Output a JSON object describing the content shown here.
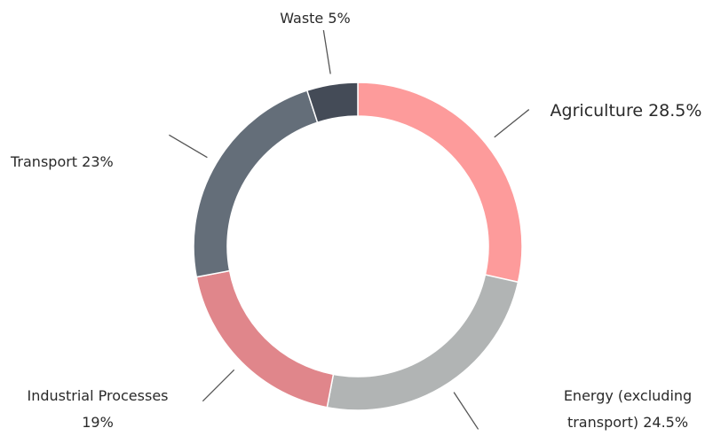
{
  "chart_data": {
    "type": "donut",
    "categories": [
      "Agriculture",
      "Energy (excluding transport)",
      "Industrial Processes",
      "Transport",
      "Waste"
    ],
    "values": [
      28.5,
      24.5,
      19,
      23,
      5
    ],
    "value_labels": [
      "28.5%",
      "24.5%",
      "19%",
      "23%",
      "5%"
    ],
    "colors": [
      "#fd9b9b",
      "#b1b4b4",
      "#e0868b",
      "#646e79",
      "#444b57"
    ]
  }
}
